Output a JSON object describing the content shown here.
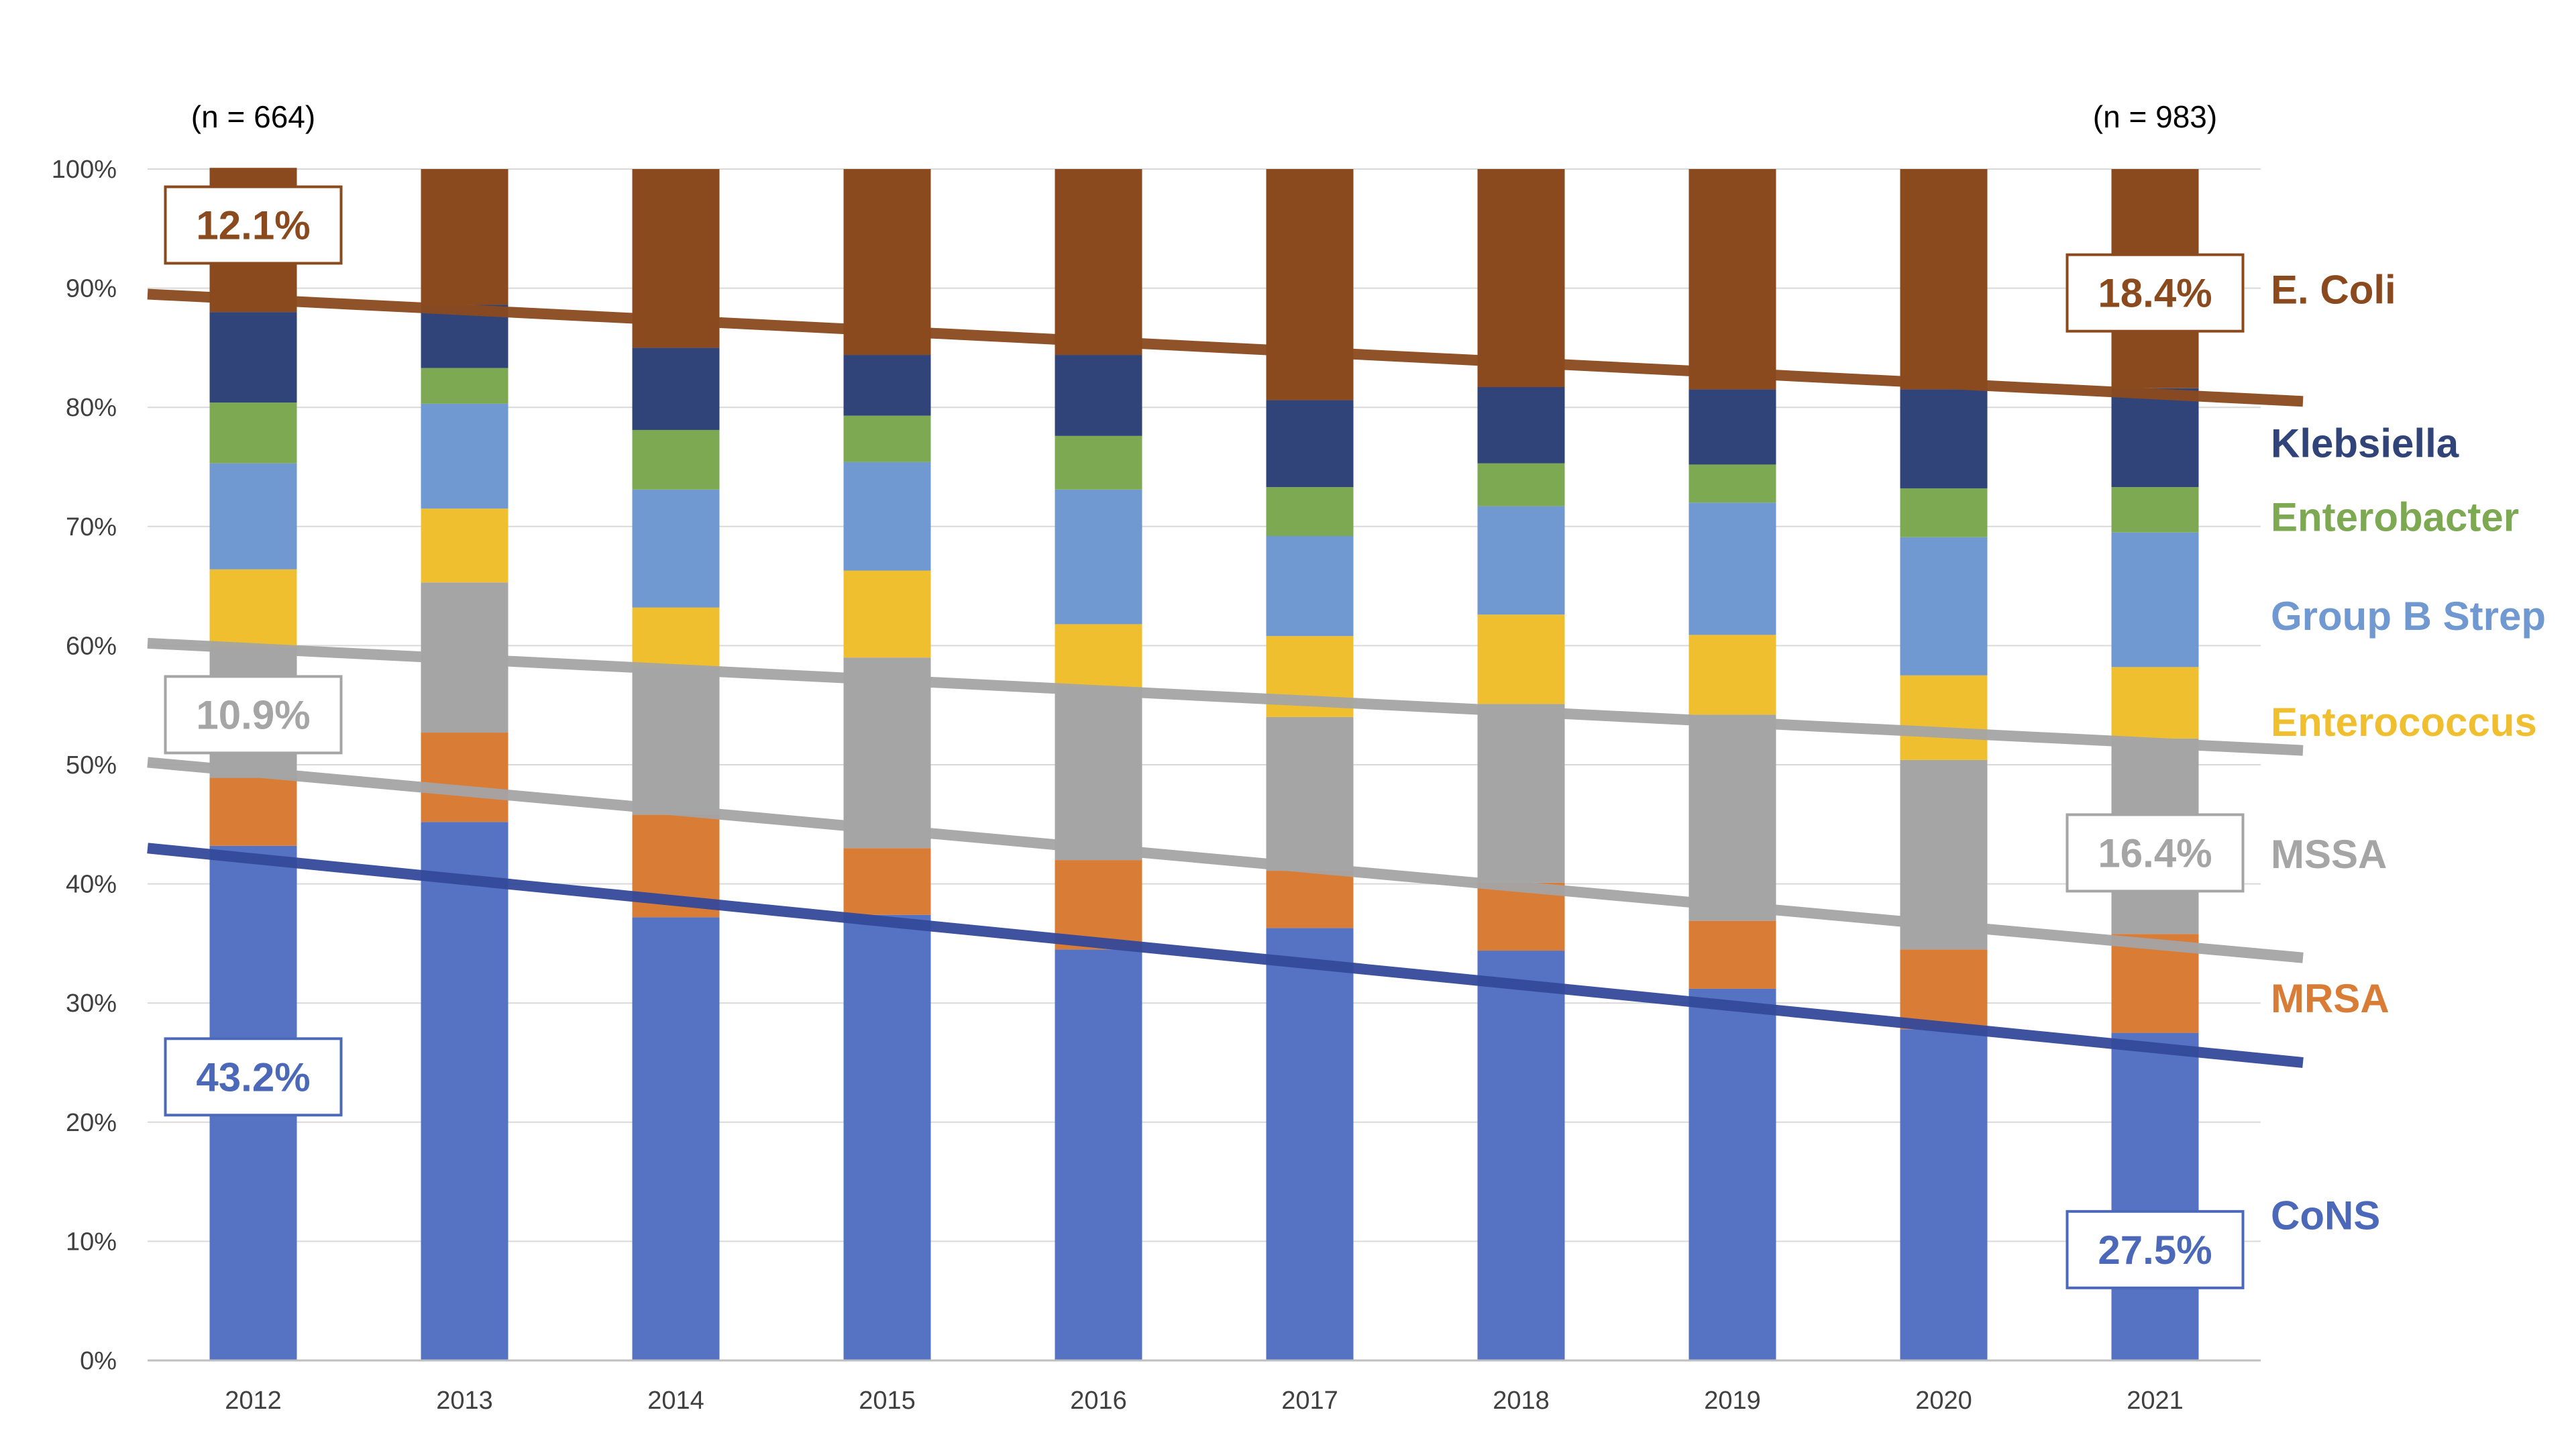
{
  "chart_data": {
    "type": "bar",
    "stacked": true,
    "categories": [
      "2012",
      "2013",
      "2014",
      "2015",
      "2016",
      "2017",
      "2018",
      "2019",
      "2020",
      "2021"
    ],
    "ylim": [
      0,
      100
    ],
    "y_ticks": [
      "0%",
      "10%",
      "20%",
      "30%",
      "40%",
      "50%",
      "60%",
      "70%",
      "80%",
      "90%",
      "100%"
    ],
    "grid": true,
    "legend_placement": "right",
    "n_labels": [
      {
        "category": "2012",
        "text": "(n = 664)"
      },
      {
        "category": "2021",
        "text": "(n = 983)"
      }
    ],
    "series": [
      {
        "name": "CoNS",
        "color": "#5672C3",
        "values": [
          43.2,
          45.2,
          37.2,
          37.4,
          34.5,
          36.3,
          34.4,
          31.2,
          27.8,
          27.5
        ]
      },
      {
        "name": "MRSA",
        "color": "#D97C36",
        "values": [
          5.7,
          7.5,
          8.6,
          5.6,
          7.5,
          4.8,
          5.7,
          5.7,
          6.7,
          8.3
        ]
      },
      {
        "name": "MSSA",
        "color": "#A5A5A5",
        "values": [
          10.9,
          12.6,
          12.4,
          16.0,
          14.5,
          12.9,
          15.0,
          17.3,
          15.9,
          16.4
        ]
      },
      {
        "name": "Enterococcus",
        "color": "#F0BF30",
        "values": [
          6.6,
          6.2,
          5.0,
          7.3,
          5.3,
          6.8,
          7.5,
          6.7,
          7.1,
          6.0
        ]
      },
      {
        "name": "Group B Strep",
        "color": "#7098D1",
        "values": [
          8.9,
          8.8,
          9.9,
          9.1,
          11.3,
          8.4,
          9.1,
          11.1,
          11.6,
          11.3
        ]
      },
      {
        "name": "Enterobacter",
        "color": "#7EA953",
        "values": [
          5.1,
          3.0,
          5.0,
          3.9,
          4.5,
          4.1,
          3.6,
          3.2,
          4.1,
          3.8
        ]
      },
      {
        "name": "Klebsiella",
        "color": "#30447A",
        "values": [
          7.6,
          5.3,
          6.9,
          5.1,
          6.8,
          7.3,
          6.4,
          6.3,
          8.3,
          8.3
        ]
      },
      {
        "name": "E. Coli",
        "color": "#8B4A1E",
        "values": [
          12.1,
          11.4,
          15.0,
          15.6,
          15.6,
          19.4,
          18.3,
          18.5,
          18.5,
          18.4
        ]
      }
    ],
    "trendlines": [
      {
        "series": "E. Coli",
        "color": "#8B4A1E",
        "start": [
          2011.5,
          89.5
        ],
        "end": [
          2021.7,
          80.5
        ]
      },
      {
        "series": "MSSA",
        "color": "#A5A5A5",
        "start": [
          2011.5,
          60.2
        ],
        "end": [
          2021.7,
          51.2
        ]
      },
      {
        "series": "MRSA",
        "color": "#A5A5A5",
        "start": [
          2011.5,
          50.2
        ],
        "end": [
          2021.7,
          33.8
        ]
      },
      {
        "series": "CoNS",
        "color": "#34499A",
        "start": [
          2011.5,
          43.0
        ],
        "end": [
          2021.7,
          25.0
        ]
      }
    ],
    "annotations": [
      {
        "text": "12.1%",
        "category": "2012",
        "y": 95.3,
        "color": "#8B4A1E"
      },
      {
        "text": "10.9%",
        "category": "2012",
        "y": 54.2,
        "color": "#A5A5A5"
      },
      {
        "text": "43.2%",
        "category": "2012",
        "y": 23.8,
        "color": "#4B69B8"
      },
      {
        "text": "18.4%",
        "category": "2021",
        "y": 89.6,
        "color": "#8B4A1E"
      },
      {
        "text": "16.4%",
        "category": "2021",
        "y": 42.6,
        "color": "#A5A5A5"
      },
      {
        "text": "27.5%",
        "category": "2021",
        "y": 9.3,
        "color": "#4B69B8"
      }
    ],
    "right_labels": [
      {
        "text": "E. Coli",
        "y": 89.9,
        "color": "#8B4A1E"
      },
      {
        "text": "Klebsiella",
        "y": 77.0,
        "color": "#30447A"
      },
      {
        "text": "Enterobacter",
        "y": 70.8,
        "color": "#7EA953"
      },
      {
        "text": "Group B Strep",
        "y": 62.5,
        "color": "#7098D1"
      },
      {
        "text": "Enterococcus",
        "y": 53.6,
        "color": "#F0BF30"
      },
      {
        "text": "MSSA",
        "y": 42.5,
        "color": "#A5A5A5"
      },
      {
        "text": "MRSA",
        "y": 30.4,
        "color": "#D97C36"
      },
      {
        "text": "CoNS",
        "y": 12.2,
        "color": "#4B69B8"
      }
    ]
  }
}
